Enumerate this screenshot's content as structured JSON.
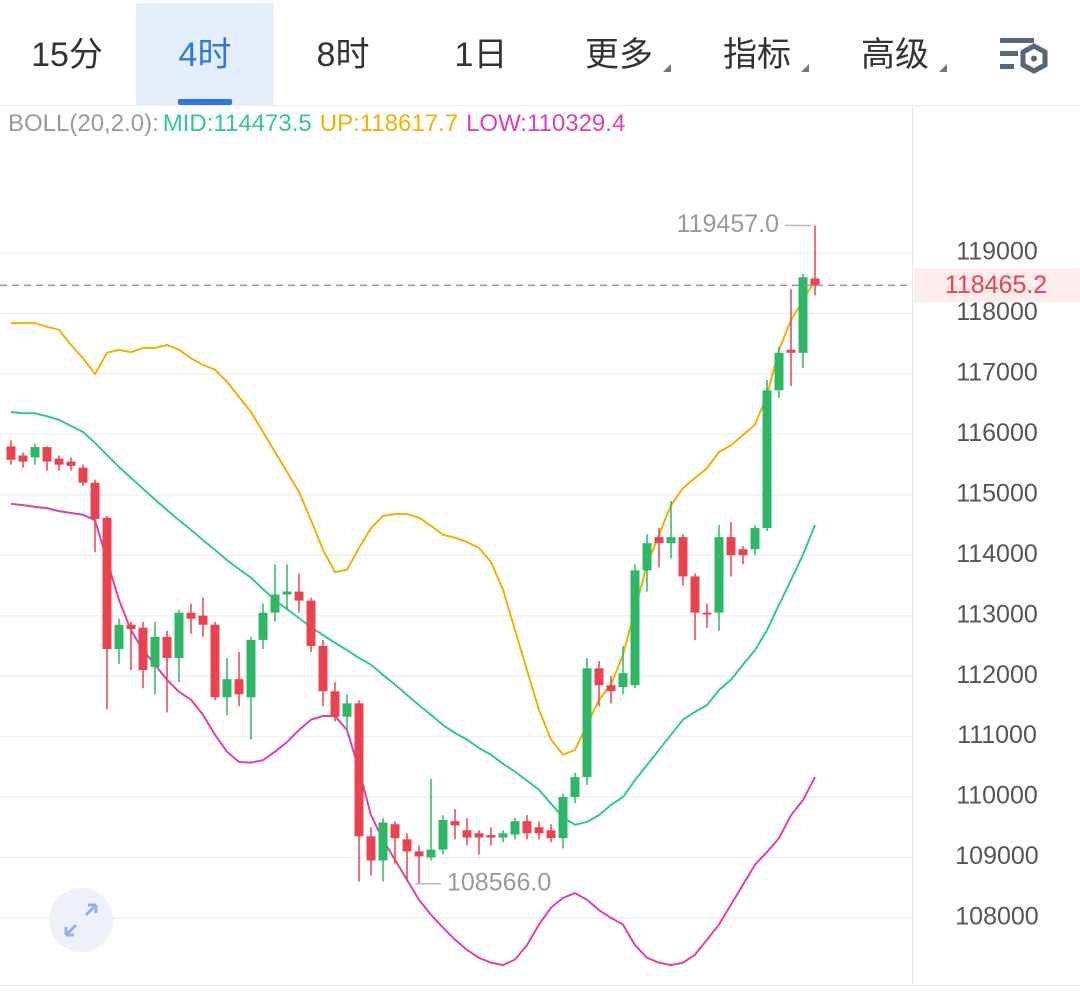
{
  "tabs": [
    "15分",
    "4时",
    "8时",
    "1日",
    "更多",
    "指标",
    "高级"
  ],
  "active_tab": 1,
  "chart_data": {
    "type": "candlestick",
    "indicator": "BOLL(20,2.0):",
    "legend": [
      {
        "text": "MID:114473.5",
        "color": "#2fc79b"
      },
      {
        "text": "UP:118617.7",
        "color": "#f2b000"
      },
      {
        "text": "LOW:110329.4",
        "color": "#e03fae"
      }
    ],
    "up_color": "#2db865",
    "down_color": "#e8434f",
    "open": [
      115800,
      115650,
      115620,
      115790,
      115600,
      115550,
      115450,
      115200,
      114620,
      112450,
      112850,
      112800,
      112150,
      112650,
      112300,
      113050,
      113000,
      112850,
      111650,
      111950,
      111650,
      112600,
      113050,
      113350,
      113400,
      113250,
      112500,
      111750,
      111330,
      111550,
      109350,
      108950,
      109550,
      109300,
      109100,
      109000,
      109130,
      109600,
      109450,
      109400,
      109370,
      109330,
      109380,
      109600,
      109500,
      109450,
      109320,
      110000,
      110330,
      112130,
      111850,
      111820,
      111850,
      113750,
      114300,
      114200,
      114300,
      113650,
      113050,
      113050,
      114300,
      114100,
      114100,
      114450,
      116730,
      117400,
      117350,
      118580
    ],
    "high": [
      115900,
      115700,
      115850,
      115800,
      115650,
      115620,
      115500,
      115250,
      114650,
      112950,
      112900,
      112900,
      112900,
      112750,
      113100,
      113200,
      113300,
      112900,
      112300,
      112400,
      112650,
      113200,
      113850,
      113850,
      113700,
      113300,
      112600,
      111900,
      111700,
      111600,
      109500,
      109650,
      109600,
      109400,
      109200,
      110300,
      109700,
      109800,
      109650,
      109450,
      109500,
      109450,
      109650,
      109700,
      109600,
      109550,
      110050,
      110400,
      112300,
      112250,
      112000,
      112500,
      113850,
      114350,
      114450,
      114900,
      114350,
      113700,
      113200,
      114500,
      114550,
      114150,
      114500,
      116900,
      117450,
      118400,
      118650,
      119457
    ],
    "low": [
      115500,
      115450,
      115500,
      115400,
      115400,
      115400,
      115150,
      114050,
      111450,
      112200,
      112100,
      111800,
      111700,
      111400,
      111900,
      112700,
      112650,
      111600,
      111350,
      111500,
      110950,
      112450,
      112900,
      113100,
      113050,
      112400,
      111500,
      111250,
      111100,
      108600,
      108700,
      108600,
      108900,
      108600,
      108566,
      108950,
      109050,
      109300,
      109200,
      109050,
      109200,
      109250,
      109300,
      109300,
      109300,
      109250,
      109150,
      109900,
      110200,
      111500,
      111550,
      111700,
      111800,
      113400,
      113800,
      113950,
      113500,
      112600,
      112800,
      112750,
      113650,
      113850,
      114000,
      114400,
      116600,
      116800,
      117100,
      118300
    ],
    "close": [
      115580,
      115550,
      115790,
      115550,
      115500,
      115480,
      115200,
      114600,
      112450,
      112850,
      112780,
      112100,
      112650,
      112300,
      113050,
      112950,
      112850,
      111650,
      111950,
      111700,
      112600,
      113050,
      113350,
      113400,
      113250,
      112500,
      111750,
      111330,
      111550,
      109350,
      108950,
      109580,
      109320,
      109100,
      109020,
      109130,
      109620,
      109530,
      109330,
      109330,
      109330,
      109400,
      109600,
      109400,
      109400,
      109320,
      110000,
      110330,
      112130,
      111850,
      111750,
      112050,
      113750,
      114200,
      114200,
      114300,
      113650,
      113050,
      113020,
      114300,
      114000,
      114000,
      114450,
      116730,
      117350,
      117350,
      118600,
      118465.2
    ],
    "series": [
      {
        "color": "#2fc79b",
        "values": [
          116370,
          116350,
          116350,
          116300,
          116240,
          116140,
          116040,
          115860,
          115660,
          115460,
          115280,
          115100,
          114920,
          114750,
          114580,
          114420,
          114250,
          114090,
          113920,
          113770,
          113630,
          113440,
          113260,
          113110,
          112960,
          112810,
          112680,
          112550,
          112430,
          112300,
          112190,
          112020,
          111860,
          111690,
          111520,
          111360,
          111190,
          111060,
          110950,
          110810,
          110700,
          110550,
          110420,
          110270,
          110120,
          109890,
          109660,
          109540,
          109590,
          109700,
          109870,
          110000,
          110280,
          110530,
          110780,
          111030,
          111280,
          111410,
          111520,
          111770,
          111940,
          112190,
          112430,
          112760,
          113180,
          113590,
          114010,
          114500
        ]
      },
      {
        "color": "#f2b000",
        "values": [
          117840,
          117840,
          117840,
          117780,
          117730,
          117480,
          117260,
          117000,
          117350,
          117400,
          117360,
          117430,
          117430,
          117480,
          117400,
          117260,
          117150,
          117070,
          116870,
          116620,
          116370,
          116040,
          115710,
          115380,
          115050,
          114580,
          114090,
          113720,
          113760,
          114120,
          114450,
          114650,
          114680,
          114680,
          114620,
          114490,
          114340,
          114290,
          114220,
          114120,
          113890,
          113430,
          112760,
          112100,
          111440,
          110950,
          110700,
          110780,
          111190,
          111610,
          111860,
          112350,
          113100,
          113840,
          114340,
          114830,
          115110,
          115280,
          115440,
          115710,
          115820,
          115990,
          116160,
          116650,
          117400,
          117890,
          118220,
          118550
        ]
      },
      {
        "color": "#e03fae",
        "values": [
          114850,
          114830,
          114800,
          114780,
          114730,
          114700,
          114670,
          114580,
          113920,
          113260,
          112760,
          112430,
          112190,
          111940,
          111740,
          111610,
          111360,
          111030,
          110750,
          110580,
          110570,
          110610,
          110750,
          110910,
          111110,
          111280,
          111340,
          111340,
          111110,
          110450,
          109700,
          109290,
          108960,
          108630,
          108300,
          108050,
          107840,
          107640,
          107470,
          107340,
          107260,
          107220,
          107310,
          107550,
          107890,
          108170,
          108330,
          108410,
          108300,
          108130,
          108000,
          107890,
          107550,
          107340,
          107260,
          107220,
          107260,
          107390,
          107640,
          107890,
          108220,
          108550,
          108880,
          109090,
          109320,
          109700,
          109950,
          110330
        ]
      }
    ],
    "last_price": 118465.2,
    "max_label": {
      "value": 119457,
      "label": "119457.0"
    },
    "min_label": {
      "value": 108566,
      "label": "108566.0"
    },
    "ylim": [
      106890,
      121450
    ],
    "yticks": [
      108000,
      109000,
      110000,
      111000,
      112000,
      113000,
      114000,
      115000,
      116000,
      117000,
      118000,
      119000
    ],
    "grid": true
  }
}
